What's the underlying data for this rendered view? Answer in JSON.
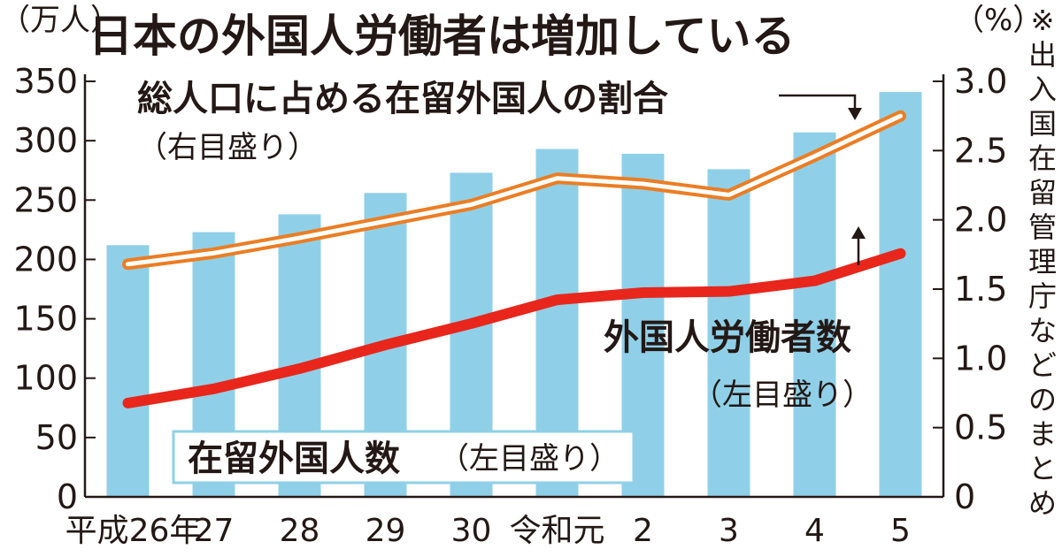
{
  "chart_data": {
    "type": "bar",
    "title": "日本の外国人労働者は増加している",
    "categories": [
      "平成26年",
      "27",
      "28",
      "29",
      "30",
      "令和元",
      "2",
      "3",
      "4",
      "5"
    ],
    "left_axis": {
      "unit": "（万人）",
      "ylim": [
        0,
        350
      ],
      "ticks": [
        "0",
        "50",
        "100",
        "150",
        "200",
        "250",
        "300",
        "350"
      ]
    },
    "right_axis": {
      "unit": "（%）",
      "ylim": [
        0,
        3.0
      ],
      "ticks": [
        "0",
        "0.5",
        "1.0",
        "1.5",
        "2.0",
        "2.5",
        "3.0"
      ]
    },
    "series": [
      {
        "name": "在留外国人数",
        "note": "（左目盛り）",
        "type": "bar",
        "axis": "left",
        "color": "#8fd0e8",
        "values": [
          212,
          223,
          238,
          256,
          273,
          293,
          289,
          276,
          307,
          341
        ]
      },
      {
        "name": "総人口に占める在留外国人の割合",
        "note": "（右目盛り）",
        "type": "line",
        "axis": "right",
        "color": "#ec7d23",
        "values": [
          1.68,
          1.76,
          1.87,
          1.99,
          2.11,
          2.3,
          2.26,
          2.18,
          2.46,
          2.75
        ]
      },
      {
        "name": "外国人労働者数",
        "note": "（左目盛り）",
        "type": "line",
        "axis": "left",
        "color": "#e8261c",
        "values": [
          79,
          91,
          108,
          128,
          146,
          166,
          172,
          173,
          182,
          205
        ]
      }
    ],
    "source_note": "※出入国在留管理庁などのまとめ",
    "grid": false
  }
}
